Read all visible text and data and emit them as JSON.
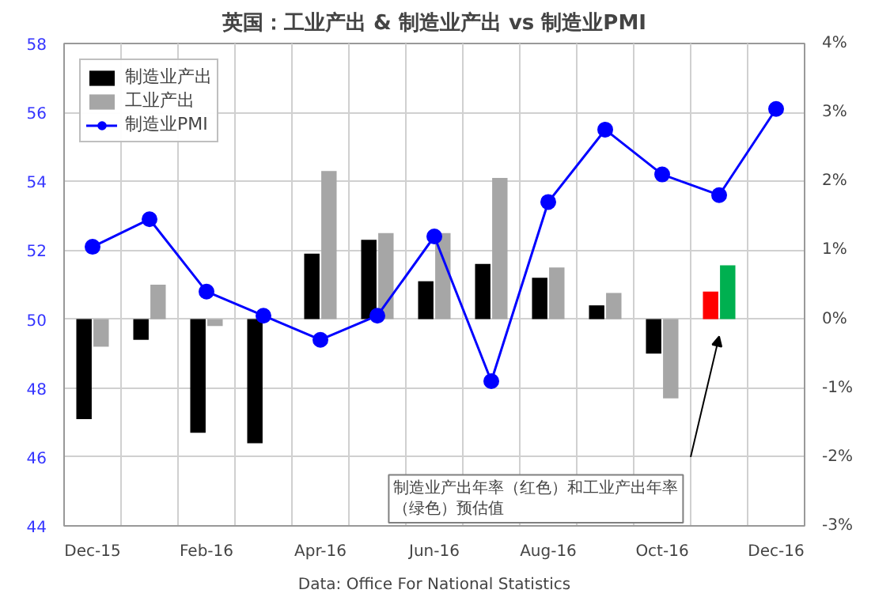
{
  "chart_data": {
    "type": "bar",
    "title": "英国：工业产出 & 制造业产出 vs 制造业PMI",
    "categories": [
      "Dec-15",
      null,
      "Feb-16",
      null,
      "Apr-16",
      null,
      "Jun-16",
      null,
      "Aug-16",
      null,
      "Oct-16",
      null,
      "Dec-16"
    ],
    "series": [
      {
        "name": "制造业产出",
        "axis": "y2",
        "color": "#000000",
        "colors": [
          "#000000",
          "#000000",
          "#000000",
          "#000000",
          "#000000",
          "#000000",
          "#000000",
          "#000000",
          "#000000",
          "#000000",
          "#000000",
          "#ff0000",
          null
        ],
        "values": [
          -1.45,
          -0.3,
          -1.65,
          -1.8,
          0.95,
          1.15,
          0.55,
          0.8,
          0.6,
          0.2,
          -0.5,
          0.4,
          null
        ]
      },
      {
        "name": "工业产出",
        "axis": "y2",
        "color": "#a6a6a6",
        "colors": [
          "#a6a6a6",
          "#a6a6a6",
          "#a6a6a6",
          "#a6a6a6",
          "#a6a6a6",
          "#a6a6a6",
          "#a6a6a6",
          "#a6a6a6",
          "#a6a6a6",
          "#a6a6a6",
          "#a6a6a6",
          "#00b050",
          null
        ],
        "values": [
          -0.4,
          0.5,
          -0.1,
          null,
          2.15,
          1.25,
          1.25,
          2.05,
          0.75,
          0.38,
          -1.15,
          0.78,
          null
        ]
      },
      {
        "name": "制造业PMI",
        "type": "line",
        "color": "#0000ff",
        "values": [
          52.1,
          52.9,
          50.8,
          50.1,
          49.4,
          50.1,
          52.4,
          48.2,
          53.4,
          55.5,
          54.2,
          53.6,
          56.1
        ]
      }
    ],
    "ylim": [
      44,
      58
    ],
    "yticks": [
      44,
      46,
      48,
      50,
      52,
      54,
      56,
      58
    ],
    "y2lim": [
      -3,
      4
    ],
    "y2ticks": [
      {
        "value": -3,
        "label": "-3%"
      },
      {
        "value": -2,
        "label": "-2%"
      },
      {
        "value": -1,
        "label": "-1%"
      },
      {
        "value": 0,
        "label": "0%"
      },
      {
        "value": 1,
        "label": "1%"
      },
      {
        "value": 2,
        "label": "2%"
      },
      {
        "value": 3,
        "label": "3%"
      },
      {
        "value": 4,
        "label": "4%"
      }
    ],
    "grid": true,
    "legend": "top left",
    "marker": "circle",
    "line_style": "solid",
    "annotations": [
      "制造业产出年率（红色）和工业产出年率（绿色）预估值",
      "Data: Office For National Statistics"
    ]
  }
}
